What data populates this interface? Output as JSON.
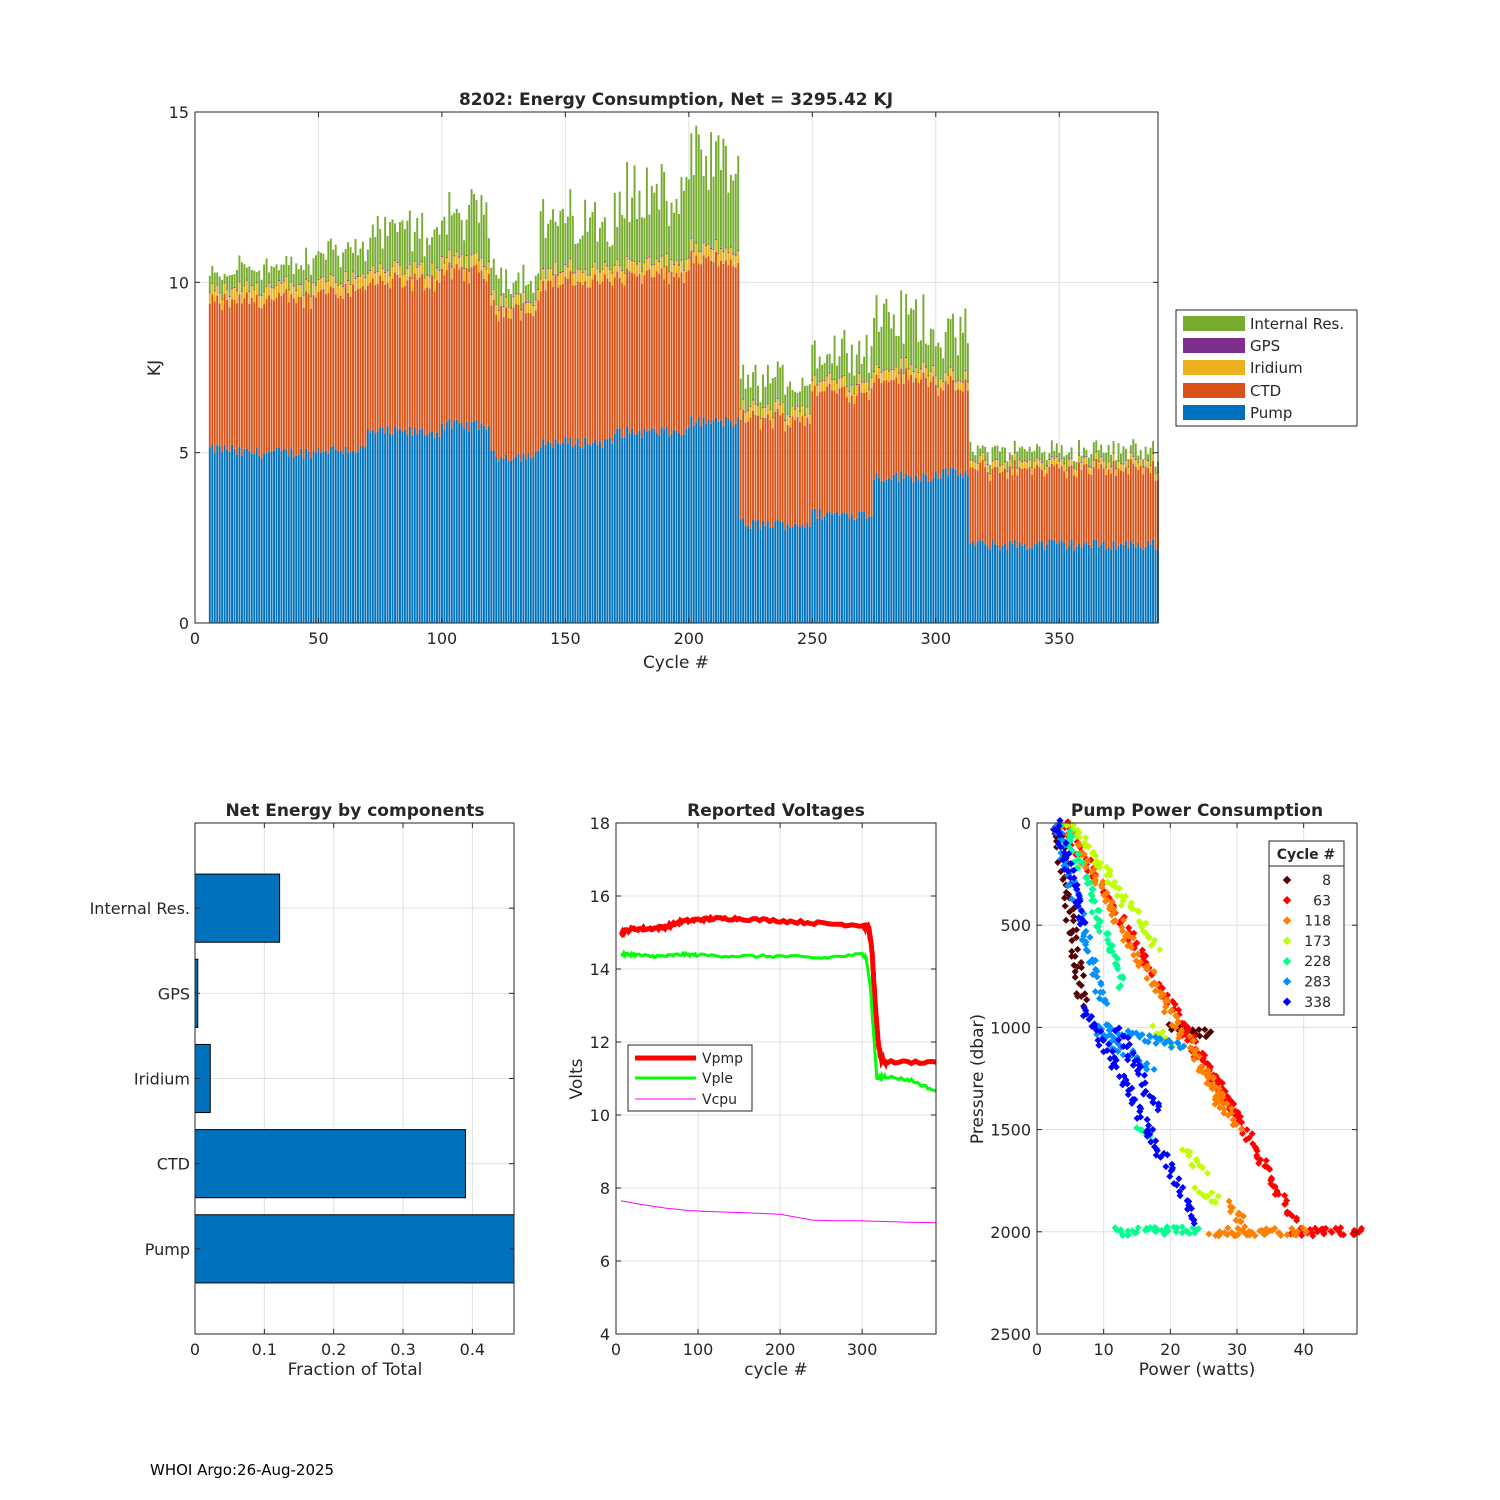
{
  "footer": "WHOI Argo:26-Aug-2025",
  "colors": {
    "pump": "#0072BD",
    "ctd": "#D95319",
    "iridium": "#EDB120",
    "gps": "#7E2F8E",
    "internal": "#77AC30",
    "vpmp": "#FF0000",
    "vple": "#00FF00",
    "vcpu": "#FF00FF",
    "grid": "#e0e0e0",
    "axis": "#262626"
  },
  "chart_data": [
    {
      "id": "energy",
      "type": "bar",
      "stacked": true,
      "title": "8202: Energy Consumption,  Net = 3295.42 KJ",
      "xlabel": "Cycle #",
      "ylabel": "KJ",
      "xlim": [
        0,
        390
      ],
      "ylim": [
        0,
        15
      ],
      "xticks": [
        0,
        50,
        100,
        150,
        200,
        250,
        300,
        350
      ],
      "yticks": [
        0,
        5,
        10,
        15
      ],
      "legend_position": "outside-right",
      "legend": [
        "Internal Res.",
        "GPS",
        "Iridium",
        "CTD",
        "Pump"
      ],
      "segments": [
        {
          "from": 6,
          "to": 15,
          "pump": 5.1,
          "ctd": 4.3,
          "iridium": 0.3,
          "gps": 0.03,
          "internal": 0.5
        },
        {
          "from": 16,
          "to": 49,
          "pump": 5.0,
          "ctd": 4.5,
          "iridium": 0.35,
          "gps": 0.03,
          "internal": 0.7
        },
        {
          "from": 50,
          "to": 69,
          "pump": 5.1,
          "ctd": 4.7,
          "iridium": 0.35,
          "gps": 0.03,
          "internal": 0.9
        },
        {
          "from": 70,
          "to": 99,
          "pump": 5.6,
          "ctd": 4.4,
          "iridium": 0.35,
          "gps": 0.03,
          "internal": 1.3
        },
        {
          "from": 100,
          "to": 119,
          "pump": 5.8,
          "ctd": 4.5,
          "iridium": 0.35,
          "gps": 0.03,
          "internal": 1.5
        },
        {
          "from": 120,
          "to": 139,
          "pump": 4.9,
          "ctd": 4.3,
          "iridium": 0.3,
          "gps": 0.03,
          "internal": 0.8
        },
        {
          "from": 140,
          "to": 169,
          "pump": 5.3,
          "ctd": 4.7,
          "iridium": 0.35,
          "gps": 0.03,
          "internal": 1.6
        },
        {
          "from": 170,
          "to": 199,
          "pump": 5.6,
          "ctd": 4.6,
          "iridium": 0.35,
          "gps": 0.03,
          "internal": 2.3
        },
        {
          "from": 200,
          "to": 220,
          "pump": 5.9,
          "ctd": 4.7,
          "iridium": 0.35,
          "gps": 0.03,
          "internal": 2.7
        },
        {
          "from": 221,
          "to": 249,
          "pump": 2.9,
          "ctd": 3.1,
          "iridium": 0.3,
          "gps": 0.03,
          "internal": 0.9
        },
        {
          "from": 250,
          "to": 274,
          "pump": 3.2,
          "ctd": 3.6,
          "iridium": 0.3,
          "gps": 0.03,
          "internal": 1.1
        },
        {
          "from": 275,
          "to": 299,
          "pump": 4.3,
          "ctd": 2.9,
          "iridium": 0.3,
          "gps": 0.03,
          "internal": 1.6
        },
        {
          "from": 300,
          "to": 313,
          "pump": 4.4,
          "ctd": 2.5,
          "iridium": 0.25,
          "gps": 0.03,
          "internal": 1.5
        },
        {
          "from": 314,
          "to": 390,
          "pump": 2.3,
          "ctd": 2.2,
          "iridium": 0.2,
          "gps": 0.03,
          "internal": 0.4
        }
      ]
    },
    {
      "id": "components",
      "type": "bar",
      "orientation": "horizontal",
      "title": "Net Energy by components",
      "xlabel": "Fraction of Total",
      "xlim": [
        0,
        0.46
      ],
      "xticks": [
        0,
        0.1,
        0.2,
        0.3,
        0.4
      ],
      "tick_labels": [
        "0",
        "0.1",
        "0.2",
        "0.3",
        "0.4"
      ],
      "categories": [
        "Internal Res.",
        "GPS",
        "Iridium",
        "CTD",
        "Pump"
      ],
      "values": [
        0.122,
        0.004,
        0.022,
        0.39,
        0.462
      ]
    },
    {
      "id": "voltages",
      "type": "line",
      "title": "Reported Voltages",
      "xlabel": "cycle #",
      "ylabel": "Volts",
      "xlim": [
        0,
        390
      ],
      "ylim": [
        4,
        18
      ],
      "xticks": [
        0,
        100,
        200,
        300
      ],
      "yticks": [
        4,
        6,
        8,
        10,
        12,
        14,
        16,
        18
      ],
      "legend_position": "middle-left",
      "series": [
        {
          "name": "Vpmp",
          "key": "vpmp",
          "width": 5,
          "x": [
            6,
            20,
            40,
            60,
            80,
            100,
            120,
            150,
            200,
            250,
            300,
            308,
            312,
            316,
            320,
            324,
            330,
            390
          ],
          "y": [
            15.0,
            15.1,
            15.1,
            15.15,
            15.3,
            15.35,
            15.38,
            15.38,
            15.32,
            15.25,
            15.2,
            15.15,
            14.5,
            13.0,
            11.9,
            11.5,
            11.45,
            11.45
          ]
        },
        {
          "name": "Vple",
          "key": "vple",
          "width": 3,
          "x": [
            6,
            20,
            40,
            60,
            80,
            100,
            150,
            200,
            250,
            300,
            305,
            310,
            314,
            318,
            322,
            330,
            360,
            390
          ],
          "y": [
            14.4,
            14.4,
            14.35,
            14.35,
            14.4,
            14.38,
            14.35,
            14.35,
            14.3,
            14.4,
            14.3,
            13.5,
            12.2,
            11.0,
            11.05,
            11.05,
            10.95,
            10.65
          ]
        },
        {
          "name": "Vcpu",
          "key": "vcpu",
          "width": 1,
          "x": [
            6,
            30,
            60,
            90,
            120,
            160,
            200,
            220,
            240,
            270,
            300,
            330,
            360,
            390
          ],
          "y": [
            7.65,
            7.55,
            7.45,
            7.38,
            7.35,
            7.32,
            7.28,
            7.2,
            7.12,
            7.1,
            7.1,
            7.08,
            7.06,
            7.05
          ]
        }
      ]
    },
    {
      "id": "pump_power",
      "type": "scatter",
      "title": "Pump Power Consumption",
      "xlabel": "Power (watts)",
      "ylabel": "Pressure (dbar)",
      "xlim": [
        0,
        48
      ],
      "ylim": [
        0,
        2500
      ],
      "y_reversed": true,
      "xticks": [
        0,
        10,
        20,
        30,
        40
      ],
      "yticks": [
        0,
        500,
        1000,
        1500,
        2000,
        2500
      ],
      "legend_title": "Cycle #",
      "legend_position": "top-right",
      "series": [
        {
          "name": "8",
          "color": "#550000",
          "lines": [
            [
              3,
              0,
              7,
              900
            ],
            [
              20,
              1000,
              26,
              1030
            ]
          ]
        },
        {
          "name": "63",
          "color": "#FF0000",
          "lines": [
            [
              4,
              0,
              39,
              1950
            ],
            [
              22,
              1000,
              30,
              1450
            ],
            [
              38,
              2000,
              46,
              2000
            ],
            [
              48,
              2000,
              48,
              2000
            ]
          ]
        },
        {
          "name": "118",
          "color": "#FF8000",
          "lines": [
            [
              4,
              0,
              30,
              1500
            ],
            [
              25,
              1200,
              28,
              1400
            ],
            [
              26,
              2000,
              40,
              2000
            ],
            [
              29,
              1850,
              31,
              1980
            ]
          ]
        },
        {
          "name": "173",
          "color": "#C0FF00",
          "lines": [
            [
              5,
              0,
              18,
              600
            ],
            [
              18,
              1000,
              20,
              1100
            ],
            [
              22,
              1600,
              25,
              1700
            ],
            [
              24,
              1800,
              27,
              1850
            ]
          ]
        },
        {
          "name": "228",
          "color": "#00FF90",
          "lines": [
            [
              4,
              0,
              13,
              800
            ],
            [
              12,
              2000,
              24,
              1990
            ],
            [
              15,
              1500,
              17,
              1550
            ]
          ]
        },
        {
          "name": "283",
          "color": "#0090FF",
          "lines": [
            [
              3,
              0,
              10,
              900
            ],
            [
              8,
              1000,
              17,
              1200
            ],
            [
              10,
              1000,
              22,
              1100
            ]
          ]
        },
        {
          "name": "338",
          "color": "#0000FF",
          "lines": [
            [
              3,
              0,
              7,
              500
            ],
            [
              7,
              900,
              24,
              1950
            ],
            [
              12,
              1000,
              18,
              1400
            ]
          ]
        }
      ]
    }
  ]
}
